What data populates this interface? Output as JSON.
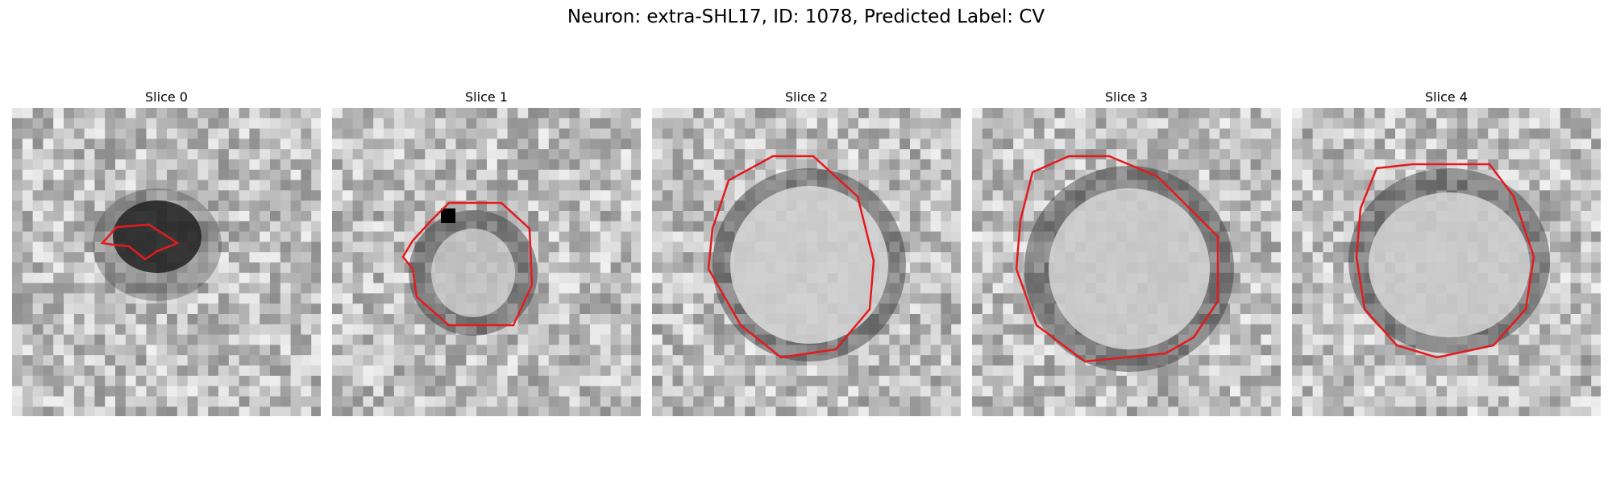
{
  "figure": {
    "title": "Neuron: extra-SHL17, ID: 1078, Predicted Label: CV",
    "neuron": "extra-SHL17",
    "id": 1078,
    "predicted_label": "CV"
  },
  "contour_color": "#e41a1c",
  "panels": [
    {
      "title": "Slice 0"
    },
    {
      "title": "Slice 1"
    },
    {
      "title": "Slice 2"
    },
    {
      "title": "Slice 3"
    },
    {
      "title": "Slice 4"
    }
  ]
}
